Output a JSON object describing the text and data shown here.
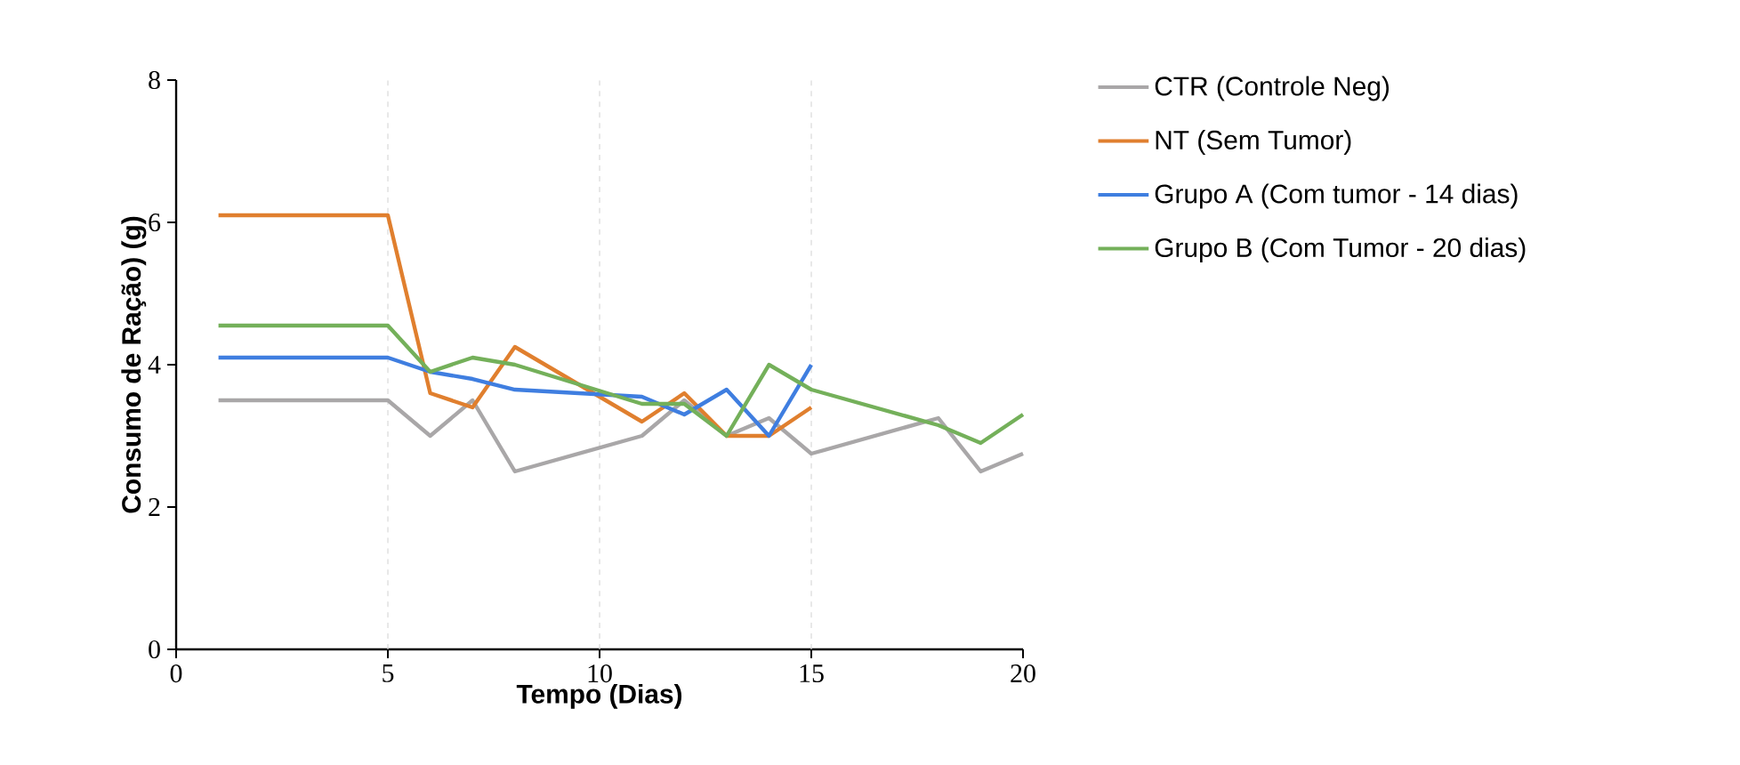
{
  "chart_data": {
    "type": "line",
    "xlabel": "Tempo (Dias)",
    "ylabel": "Consumo de Ração) (g)",
    "xlim": [
      0,
      20
    ],
    "xticks": [
      0,
      5,
      10,
      15,
      20
    ],
    "ylim": [
      0,
      8
    ],
    "yticks": [
      0,
      2,
      4,
      6,
      8
    ],
    "grid": false,
    "legend": "right",
    "marker": "none",
    "line_style": "solid",
    "ref_lines": [
      {
        "axis": "x",
        "value": 5,
        "color": "#d9d9d9",
        "line_style": "dashed"
      },
      {
        "axis": "x",
        "value": 10,
        "color": "#d9d9d9",
        "line_style": "dashed"
      },
      {
        "axis": "x",
        "value": 15,
        "color": "#d9d9d9",
        "line_style": "dashed"
      }
    ],
    "series": [
      {
        "name": "CTR (Controle Neg)",
        "color": "#a9a7a8",
        "x": [
          1,
          5,
          6,
          7,
          8,
          11,
          12,
          13,
          14,
          15,
          18,
          19,
          20
        ],
        "values": [
          3.5,
          3.5,
          3.0,
          3.5,
          2.5,
          3.0,
          3.5,
          3.0,
          3.25,
          2.75,
          3.25,
          2.5,
          2.75
        ]
      },
      {
        "name": "NT (Sem Tumor)",
        "color": "#e07f2e",
        "x": [
          1,
          5,
          6,
          7,
          8,
          11,
          12,
          13,
          14,
          15
        ],
        "values": [
          6.1,
          6.1,
          3.6,
          3.4,
          4.25,
          3.2,
          3.6,
          3.0,
          3.0,
          3.4
        ]
      },
      {
        "name": "Grupo A (Com tumor - 14 dias)",
        "color": "#3f7ee0",
        "x": [
          1,
          5,
          6,
          7,
          8,
          11,
          12,
          13,
          14,
          15
        ],
        "values": [
          4.1,
          4.1,
          3.9,
          3.8,
          3.65,
          3.55,
          3.3,
          3.65,
          3.0,
          4.0
        ]
      },
      {
        "name": "Grupo B (Com Tumor - 20 dias)",
        "color": "#74b05a",
        "x": [
          1,
          5,
          6,
          7,
          8,
          11,
          12,
          13,
          14,
          15,
          18,
          19,
          20
        ],
        "values": [
          4.55,
          4.55,
          3.9,
          4.1,
          4.0,
          3.45,
          3.45,
          3.0,
          4.0,
          3.65,
          3.15,
          2.9,
          3.3
        ]
      }
    ]
  }
}
